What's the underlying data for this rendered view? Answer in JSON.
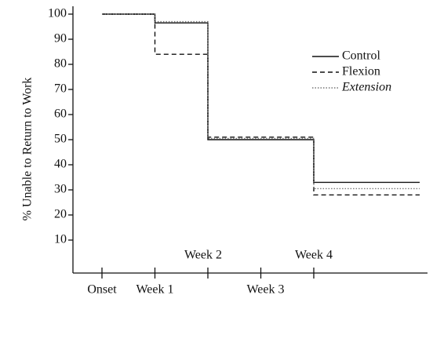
{
  "chart_data": {
    "type": "step",
    "ylabel": "% Unable to Return to Work",
    "xlim": [
      0,
      6
    ],
    "ylim": [
      0,
      100
    ],
    "yticks": [
      10,
      20,
      30,
      40,
      50,
      60,
      70,
      80,
      90,
      100
    ],
    "xticks": [
      {
        "value": 0,
        "label": "Onset"
      },
      {
        "value": 1,
        "label": "Week 1"
      },
      {
        "value": 2,
        "label": "Week 2"
      },
      {
        "value": 3,
        "label": "Week 3"
      },
      {
        "value": 4,
        "label": "Week 4"
      }
    ],
    "x": [
      0,
      1,
      2,
      4,
      6
    ],
    "series": [
      {
        "name": "Control",
        "color": "#111111",
        "dash": "solid",
        "values": [
          100,
          96.5,
          50,
          33,
          33
        ]
      },
      {
        "name": "Flexion",
        "color": "#111111",
        "dash": "dashed",
        "values": [
          100,
          84,
          51,
          28,
          28
        ]
      },
      {
        "name": "Extension",
        "color": "#777777",
        "dash": "dotted",
        "values": [
          100,
          97,
          50.5,
          30.5,
          30.5
        ]
      }
    ]
  }
}
